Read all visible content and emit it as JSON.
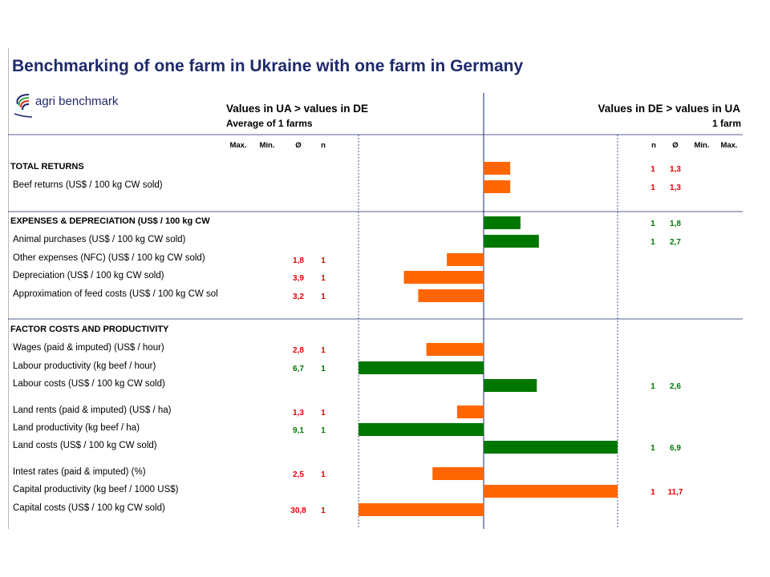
{
  "title": "Benchmarking of one farm in Ukraine with one farm in Germany",
  "logo": {
    "text": "agri benchmark",
    "icon": "agri-benchmark-logo-icon"
  },
  "header": {
    "left_title": "Values in UA > values in DE",
    "left_sub": "Average of 1  farms",
    "right_title": "Values in DE > values in UA",
    "right_sub": "1  farm"
  },
  "columns_left": [
    "Max.",
    "Min.",
    "Ø",
    "n"
  ],
  "columns_right": [
    "n",
    "Ø",
    "Min.",
    "Max."
  ],
  "colors": {
    "orange": "#ff6600",
    "green": "#007700",
    "red_text": "#e60000",
    "green_text": "#007700",
    "title": "#1f2a6b",
    "rule": "#1f2a6b"
  },
  "chart_data": {
    "type": "bar",
    "orientation": "horizontal-diverging",
    "rows": [
      {
        "label": "TOTAL RETURNS",
        "section": true,
        "value": 1.3,
        "side": "right",
        "color": "orange",
        "n": "1",
        "avg": "1,3",
        "avg_color": "red"
      },
      {
        "label": "Beef returns (US$ / 100 kg CW sold)",
        "value": 1.3,
        "side": "right",
        "color": "orange",
        "n": "1",
        "avg": "1,3",
        "avg_color": "red"
      },
      {
        "label": "EXPENSES & DEPRECIATION (US$ / 100 kg CW",
        "section": true,
        "value": 1.8,
        "side": "right",
        "color": "green",
        "n": "1",
        "avg": "1,8",
        "avg_color": "green"
      },
      {
        "label": "Animal purchases (US$ / 100 kg CW sold)",
        "value": 2.7,
        "side": "right",
        "color": "green",
        "n": "1",
        "avg": "2,7",
        "avg_color": "green"
      },
      {
        "label": "Other expenses (NFC) (US$ / 100 kg CW sold)",
        "value": 1.8,
        "side": "left",
        "color": "orange",
        "n": "1",
        "avg": "1,8",
        "avg_color": "red"
      },
      {
        "label": "Depreciation (US$ / 100 kg CW sold)",
        "value": 3.9,
        "side": "left",
        "color": "orange",
        "n": "1",
        "avg": "3,9",
        "avg_color": "red"
      },
      {
        "label": "Approximation of feed costs (US$ / 100 kg CW sol",
        "value": 3.2,
        "side": "left",
        "color": "orange",
        "n": "1",
        "avg": "3,2",
        "avg_color": "red"
      },
      {
        "label": "FACTOR COSTS AND PRODUCTIVITY",
        "section": true,
        "value": null
      },
      {
        "label": "Wages (paid & imputed) (US$ / hour)",
        "value": 2.8,
        "side": "left",
        "color": "orange",
        "n": "1",
        "avg": "2,8",
        "avg_color": "red"
      },
      {
        "label": "Labour productivity (kg beef / hour)",
        "value": 6.7,
        "side": "left",
        "color": "green",
        "n": "1",
        "avg": "6,7",
        "avg_color": "green"
      },
      {
        "label": "Labour costs (US$ / 100 kg CW sold)",
        "value": 2.6,
        "side": "right",
        "color": "green",
        "n": "1",
        "avg": "2,6",
        "avg_color": "green"
      },
      {
        "label": "Land rents (paid & imputed) (US$ / ha)",
        "value": 1.3,
        "side": "left",
        "color": "orange",
        "n": "1",
        "avg": "1,3",
        "avg_color": "red"
      },
      {
        "label": "Land productivity (kg beef / ha)",
        "value": 9.1,
        "side": "left",
        "color": "green",
        "n": "1",
        "avg": "9,1",
        "avg_color": "green"
      },
      {
        "label": "Land costs (US$ / 100 kg CW sold)",
        "value": 6.9,
        "side": "right",
        "color": "green",
        "n": "1",
        "avg": "6,9",
        "avg_color": "green"
      },
      {
        "label": "Intest rates (paid & imputed) (%)",
        "value": 2.5,
        "side": "left",
        "color": "orange",
        "n": "1",
        "avg": "2,5",
        "avg_color": "red"
      },
      {
        "label": "Capital productivity (kg beef / 1000 US$)",
        "value": 11.7,
        "side": "right",
        "color": "orange",
        "n": "1",
        "avg": "11,7",
        "avg_color": "red"
      },
      {
        "label": "Capital costs (US$ / 100 kg CW sold)",
        "value": 30.8,
        "side": "left",
        "color": "orange",
        "n": "1",
        "avg": "30,8",
        "avg_color": "red"
      }
    ]
  }
}
